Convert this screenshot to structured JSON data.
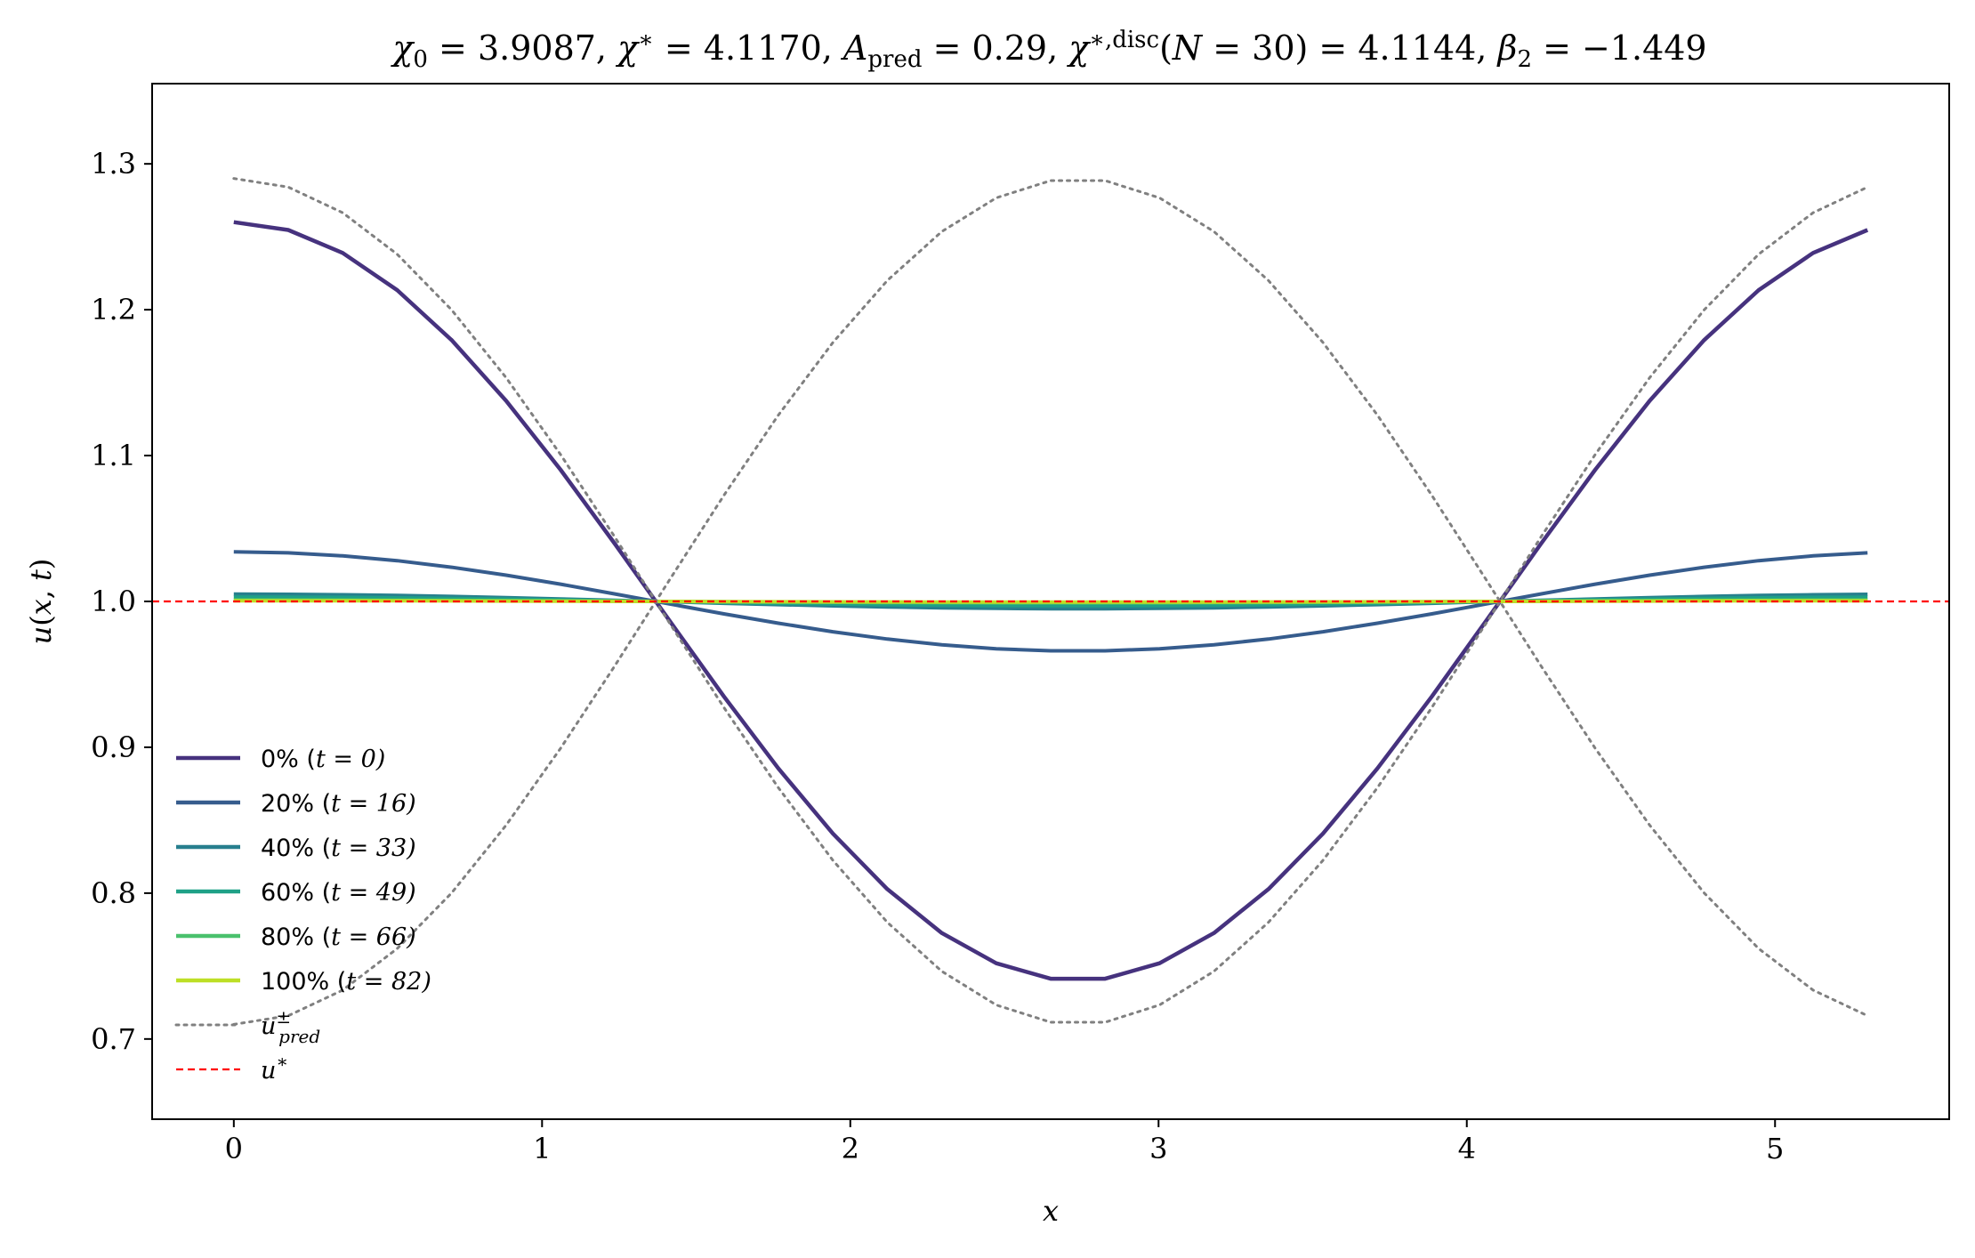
{
  "chart_data": {
    "type": "line",
    "title": "χ₀ = 3.9087,  χ* = 4.1170,  A_pred = 0.29,  χ*,disc(N = 30) = 4.1144,  β₂ = −1.449",
    "xlabel": "x",
    "ylabel": "u(x, t)",
    "xlim": [
      -0.265,
      5.565
    ],
    "ylim": [
      0.645,
      1.355
    ],
    "xticks": [
      "0",
      "1",
      "2",
      "3",
      "4",
      "5"
    ],
    "yticks": [
      "0.7",
      "0.8",
      "0.9",
      "1.0",
      "1.1",
      "1.2",
      "1.3"
    ],
    "grid": false,
    "legend_position": "lower-left",
    "n_points": 31,
    "x_max": 5.3,
    "series": [
      {
        "name": "0% (t = 0)",
        "amplitude": 0.26,
        "color": "#46327e",
        "style": "solid"
      },
      {
        "name": "20% (t = 16)",
        "amplitude": 0.034,
        "color": "#365c8d",
        "style": "solid"
      },
      {
        "name": "40% (t = 33)",
        "amplitude": 0.005,
        "color": "#277f8e",
        "style": "solid"
      },
      {
        "name": "60% (t = 49)",
        "amplitude": 0.003,
        "color": "#1fa187",
        "style": "solid"
      },
      {
        "name": "80% (t = 66)",
        "amplitude": 0.001,
        "color": "#4ac16d",
        "style": "solid"
      },
      {
        "name": "100% (t = 82)",
        "amplitude": 0.0005,
        "color": "#bddf26",
        "style": "solid"
      },
      {
        "name": "u±_pred",
        "amplitude": 0.29,
        "color": "#808080",
        "style": "dotted",
        "both_signs": true
      },
      {
        "name": "u*",
        "value": 1.0,
        "color": "#ff0000",
        "style": "dashed"
      }
    ]
  }
}
